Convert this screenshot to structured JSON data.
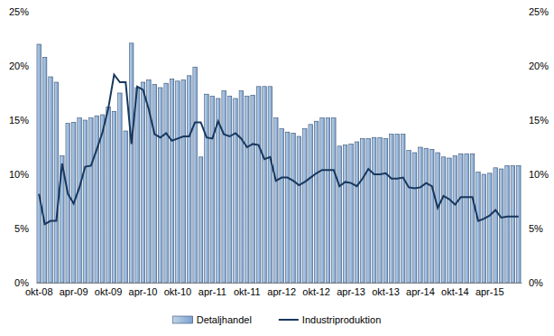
{
  "chart_data": {
    "type": "bar",
    "categories": [
      "okt-08",
      null,
      null,
      null,
      null,
      null,
      "apr-09",
      null,
      null,
      null,
      null,
      null,
      "okt-09",
      null,
      null,
      null,
      null,
      null,
      "apr-10",
      null,
      null,
      null,
      null,
      null,
      "okt-10",
      null,
      null,
      null,
      null,
      null,
      "apr-11",
      null,
      null,
      null,
      null,
      null,
      "okt-11",
      null,
      null,
      null,
      null,
      null,
      "apr-12",
      null,
      null,
      null,
      null,
      null,
      "okt-12",
      null,
      null,
      null,
      null,
      null,
      "apr-13",
      null,
      null,
      null,
      null,
      null,
      "okt-13",
      null,
      null,
      null,
      null,
      null,
      "apr-14",
      null,
      null,
      null,
      null,
      null,
      "okt-14",
      null,
      null,
      null,
      null,
      null,
      "apr-15",
      null,
      null,
      null,
      null,
      null
    ],
    "series": [
      {
        "name": "Detaljhandel",
        "type": "bar",
        "color": "#4f81bd",
        "values": [
          22.0,
          20.8,
          19.0,
          18.5,
          11.7,
          14.7,
          14.8,
          15.2,
          15.0,
          15.2,
          15.4,
          15.5,
          16.2,
          15.8,
          17.5,
          14.0,
          22.1,
          18.0,
          18.5,
          18.7,
          18.3,
          18.0,
          18.4,
          18.8,
          18.6,
          18.7,
          19.1,
          19.9,
          11.6,
          17.4,
          17.2,
          17.0,
          17.7,
          17.2,
          17.0,
          17.7,
          17.2,
          17.3,
          18.1,
          18.1,
          18.1,
          15.2,
          14.2,
          13.9,
          13.8,
          13.5,
          14.2,
          14.6,
          14.9,
          15.2,
          15.2,
          15.2,
          12.6,
          12.7,
          12.8,
          13.0,
          13.3,
          13.3,
          13.4,
          13.4,
          13.3,
          13.7,
          13.7,
          13.7,
          12.2,
          12.0,
          12.5,
          12.4,
          12.3,
          12.0,
          11.6,
          11.5,
          11.7,
          11.9,
          11.9,
          11.9,
          10.2,
          10.0,
          10.1,
          10.6,
          10.5,
          10.8,
          10.8,
          10.8
        ]
      },
      {
        "name": "Industriproduktion",
        "type": "line",
        "axis": "y2",
        "color": "#17375e",
        "values": [
          8.2,
          5.4,
          5.7,
          5.7,
          11.0,
          8.2,
          7.3,
          8.8,
          10.7,
          10.8,
          12.3,
          13.9,
          16.1,
          19.2,
          18.5,
          18.5,
          12.8,
          18.1,
          17.8,
          16.0,
          13.7,
          13.4,
          13.8,
          13.1,
          13.3,
          13.5,
          13.5,
          14.8,
          14.8,
          13.4,
          13.3,
          14.9,
          13.7,
          13.5,
          13.8,
          13.3,
          12.5,
          12.8,
          12.7,
          11.4,
          11.6,
          9.4,
          9.7,
          9.7,
          9.4,
          9.0,
          9.3,
          9.7,
          10.1,
          10.4,
          10.4,
          10.4,
          8.9,
          9.3,
          9.2,
          8.9,
          9.6,
          10.5,
          10.0,
          10.0,
          10.1,
          9.6,
          9.6,
          9.7,
          8.8,
          8.7,
          8.8,
          9.2,
          8.9,
          6.9,
          8.0,
          7.7,
          7.2,
          7.9,
          7.9,
          7.9,
          5.7,
          5.9,
          6.2,
          6.7,
          6.0,
          6.1,
          6.1,
          6.1
        ]
      }
    ],
    "ylim": [
      0,
      25
    ],
    "yticks": [
      {
        "value": 0,
        "label": "0%"
      },
      {
        "value": 5,
        "label": "5%"
      },
      {
        "value": 10,
        "label": "10%"
      },
      {
        "value": 15,
        "label": "15%"
      },
      {
        "value": 20,
        "label": "20%"
      },
      {
        "value": 25,
        "label": "25%"
      }
    ],
    "y2lim": [
      0,
      25
    ],
    "y2ticks": [
      {
        "value": 0,
        "label": "0%"
      },
      {
        "value": 5,
        "label": "5%"
      },
      {
        "value": 10,
        "label": "10%"
      },
      {
        "value": 15,
        "label": "15%"
      },
      {
        "value": 20,
        "label": "20%"
      },
      {
        "value": 25,
        "label": "25%"
      }
    ],
    "grid": false,
    "legend": "bottom"
  }
}
